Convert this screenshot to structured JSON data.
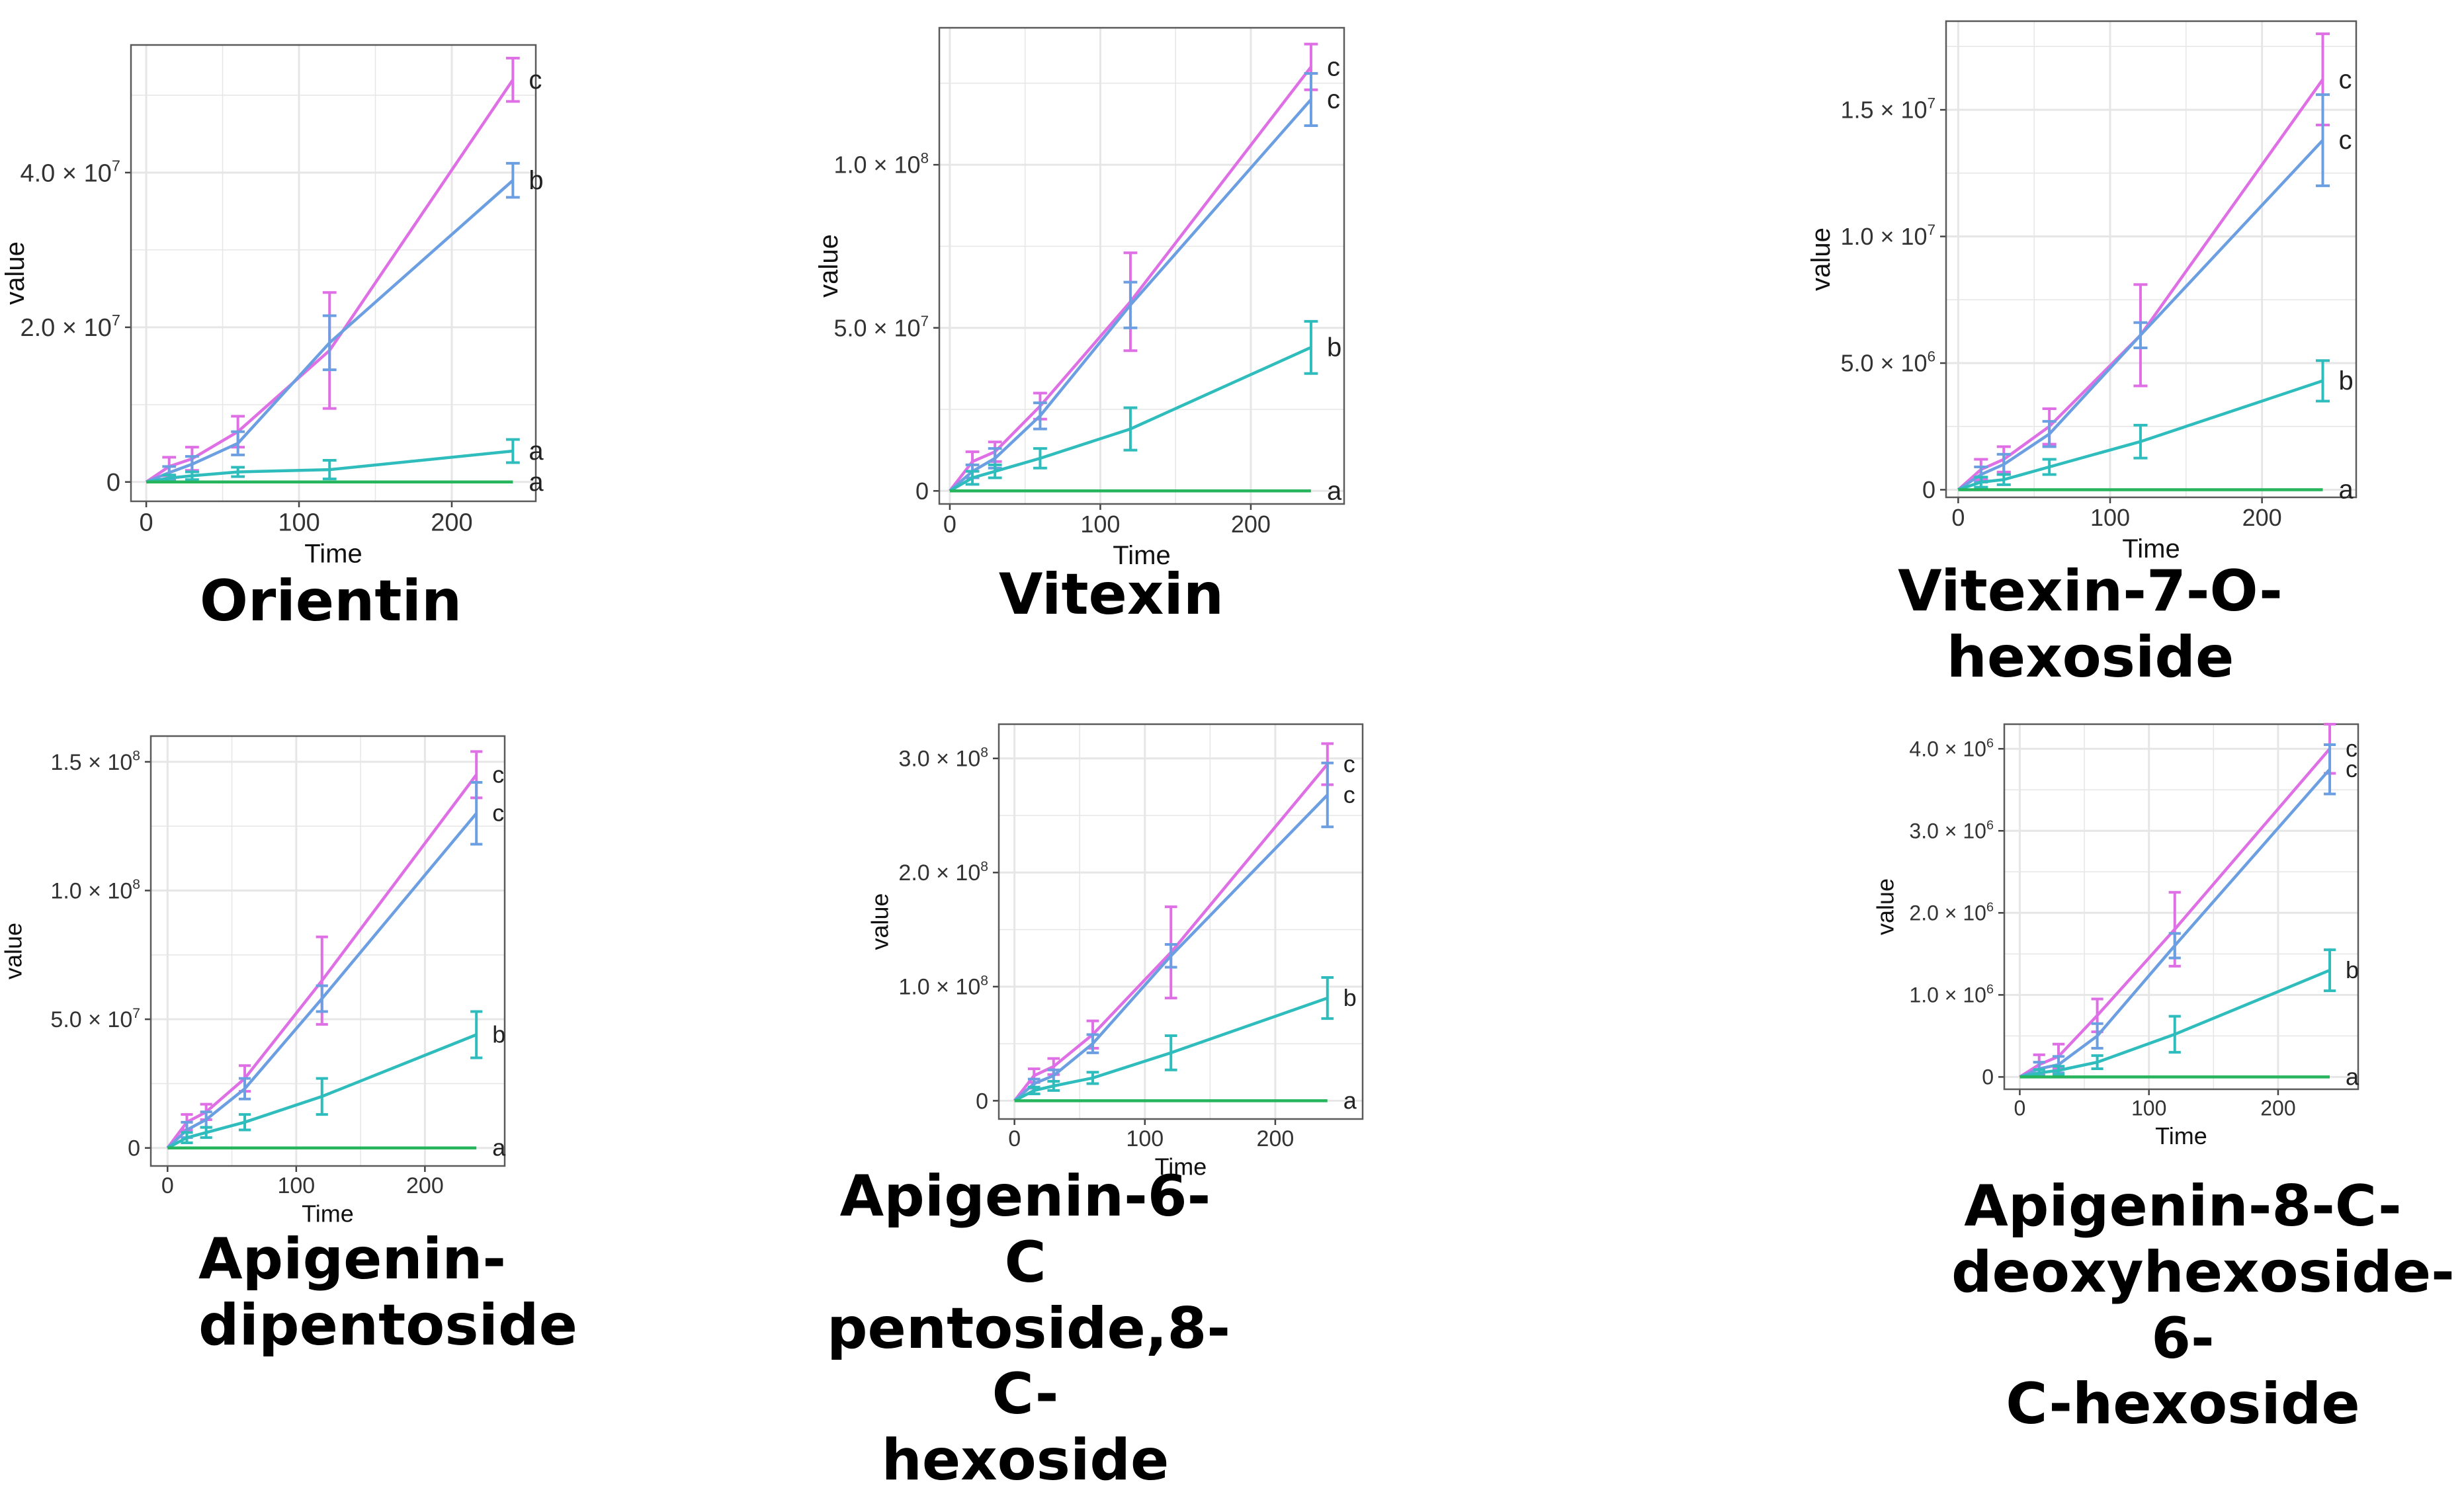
{
  "colors": {
    "magenta": "#df6fe4",
    "blue": "#6c9fe1",
    "teal": "#2fbcbc",
    "green": "#26b45c",
    "panel_bg": "#ffffff",
    "grid": "#e6e6e6",
    "axis_text": "#333333"
  },
  "chart_data": [
    {
      "type": "line",
      "title": "Orientin",
      "xlabel": "Time",
      "ylabel": "value",
      "x": [
        0,
        15,
        30,
        60,
        120,
        240
      ],
      "xlim": [
        -10,
        255
      ],
      "xticks": [
        "0",
        "100",
        "200"
      ],
      "xtickvals": [
        0,
        100,
        200
      ],
      "ylim": [
        -2.5,
        56.5
      ],
      "ytickvals": [
        0,
        20,
        40
      ],
      "yticks": [
        {
          "mant": "0",
          "exp": ""
        },
        {
          "mant": "2.0 × 10",
          "exp": "7"
        },
        {
          "mant": "4.0 × 10",
          "exp": "7"
        }
      ],
      "grid": true,
      "series": [
        {
          "name": "magenta",
          "color": "#df6fe4",
          "values": [
            0,
            2,
            3,
            6.5,
            17,
            52
          ],
          "err": [
            0,
            1.2,
            1.5,
            2,
            7.5,
            2.8
          ],
          "label": "c"
        },
        {
          "name": "blue",
          "color": "#6c9fe1",
          "values": [
            0,
            1.2,
            2.3,
            5,
            18,
            39
          ],
          "err": [
            0,
            0.8,
            1,
            1.5,
            3.5,
            2.2
          ],
          "label": "b"
        },
        {
          "name": "teal",
          "color": "#2fbcbc",
          "values": [
            0,
            0.5,
            0.8,
            1.3,
            1.6,
            4
          ],
          "err": [
            0,
            0.4,
            0.5,
            0.6,
            1.2,
            1.5
          ],
          "label": "a"
        },
        {
          "name": "green",
          "color": "#26b45c",
          "values": [
            0,
            0,
            0,
            0,
            0,
            0
          ],
          "err": [
            0,
            0,
            0,
            0,
            0,
            0
          ],
          "label": "a"
        }
      ]
    },
    {
      "type": "line",
      "title": "Vitexin",
      "xlabel": "Time",
      "ylabel": "value",
      "x": [
        0,
        15,
        30,
        60,
        120,
        240
      ],
      "xlim": [
        -7,
        262
      ],
      "xticks": [
        "0",
        "100",
        "200"
      ],
      "xtickvals": [
        0,
        100,
        200
      ],
      "ylim": [
        -4,
        142
      ],
      "ytickvals": [
        0,
        50,
        100
      ],
      "yticks": [
        {
          "mant": "0",
          "exp": ""
        },
        {
          "mant": "5.0 × 10",
          "exp": "7"
        },
        {
          "mant": "1.0 × 10",
          "exp": "8"
        }
      ],
      "grid": true,
      "series": [
        {
          "name": "magenta",
          "color": "#df6fe4",
          "values": [
            0,
            9,
            12,
            26,
            58,
            130
          ],
          "err": [
            0,
            3,
            3,
            4,
            15,
            7
          ],
          "label": "c"
        },
        {
          "name": "blue",
          "color": "#6c9fe1",
          "values": [
            0,
            6,
            10,
            23,
            57,
            120
          ],
          "err": [
            0,
            2,
            3,
            4,
            7,
            8
          ],
          "label": "c"
        },
        {
          "name": "teal",
          "color": "#2fbcbc",
          "values": [
            0,
            4,
            6,
            10,
            19,
            44
          ],
          "err": [
            0,
            2,
            2,
            3,
            6.5,
            8
          ],
          "label": "b"
        },
        {
          "name": "green",
          "color": "#26b45c",
          "values": [
            0,
            0,
            0,
            0,
            0,
            0
          ],
          "err": [
            0,
            0,
            0,
            0,
            0,
            0
          ],
          "label": "a"
        }
      ]
    },
    {
      "type": "line",
      "title": "Vitexin-7-O-hexoside",
      "xlabel": "Time",
      "ylabel": "value",
      "x": [
        0,
        15,
        30,
        60,
        120,
        240
      ],
      "xlim": [
        -8,
        262
      ],
      "xticks": [
        "0",
        "100",
        "200"
      ],
      "xtickvals": [
        0,
        100,
        200
      ],
      "ylim": [
        -0.3,
        18.5
      ],
      "ytickvals": [
        0,
        5,
        10,
        15
      ],
      "yticks": [
        {
          "mant": "0",
          "exp": ""
        },
        {
          "mant": "5.0 × 10",
          "exp": "6"
        },
        {
          "mant": "1.0 × 10",
          "exp": "7"
        },
        {
          "mant": "1.5 × 10",
          "exp": "7"
        }
      ],
      "grid": true,
      "series": [
        {
          "name": "magenta",
          "color": "#df6fe4",
          "values": [
            0,
            0.8,
            1.2,
            2.5,
            6.1,
            16.2
          ],
          "err": [
            0,
            0.4,
            0.5,
            0.7,
            2,
            1.8
          ],
          "label": "c"
        },
        {
          "name": "blue",
          "color": "#6c9fe1",
          "values": [
            0,
            0.6,
            1,
            2.2,
            6.1,
            13.8
          ],
          "err": [
            0,
            0.3,
            0.4,
            0.5,
            0.5,
            1.8
          ],
          "label": "c"
        },
        {
          "name": "teal",
          "color": "#2fbcbc",
          "values": [
            0,
            0.3,
            0.4,
            0.9,
            1.9,
            4.3
          ],
          "err": [
            0,
            0.2,
            0.2,
            0.3,
            0.65,
            0.8
          ],
          "label": "b"
        },
        {
          "name": "green",
          "color": "#26b45c",
          "values": [
            0,
            0,
            0,
            0,
            0,
            0
          ],
          "err": [
            0,
            0,
            0,
            0,
            0,
            0
          ],
          "label": "a"
        }
      ]
    },
    {
      "type": "line",
      "title": "Apigenin-dipentoside",
      "xlabel": "Time",
      "ylabel": "value",
      "x": [
        0,
        15,
        30,
        60,
        120,
        240
      ],
      "xlim": [
        -13,
        262
      ],
      "xticks": [
        "0",
        "100",
        "200"
      ],
      "xtickvals": [
        0,
        100,
        200
      ],
      "ylim": [
        -7,
        160
      ],
      "ytickvals": [
        0,
        50,
        100,
        150
      ],
      "yticks": [
        {
          "mant": "0",
          "exp": ""
        },
        {
          "mant": "5.0 × 10",
          "exp": "7"
        },
        {
          "mant": "1.0 × 10",
          "exp": "8"
        },
        {
          "mant": "1.5 × 10",
          "exp": "8"
        }
      ],
      "grid": true,
      "series": [
        {
          "name": "magenta",
          "color": "#df6fe4",
          "values": [
            0,
            10,
            14,
            27,
            65,
            145
          ],
          "err": [
            0,
            3,
            3,
            5,
            17,
            9
          ],
          "label": "c"
        },
        {
          "name": "blue",
          "color": "#6c9fe1",
          "values": [
            0,
            7,
            11,
            23,
            58,
            130
          ],
          "err": [
            0,
            3,
            3,
            4,
            5,
            12
          ],
          "label": "c"
        },
        {
          "name": "teal",
          "color": "#2fbcbc",
          "values": [
            0,
            4,
            6,
            10,
            20,
            44
          ],
          "err": [
            0,
            2,
            2,
            3,
            7,
            9
          ],
          "label": "b"
        },
        {
          "name": "green",
          "color": "#26b45c",
          "values": [
            0,
            0,
            0,
            0,
            0,
            0
          ],
          "err": [
            0,
            0,
            0,
            0,
            0,
            0
          ],
          "label": "a"
        }
      ]
    },
    {
      "type": "line",
      "title": "Apigenin-6-C pentoside,8-C-hexoside",
      "xlabel": "Time",
      "ylabel": "value",
      "x": [
        0,
        15,
        30,
        60,
        120,
        240
      ],
      "xlim": [
        -12,
        267
      ],
      "xticks": [
        "0",
        "100",
        "200"
      ],
      "xtickvals": [
        0,
        100,
        200
      ],
      "ylim": [
        -16,
        330
      ],
      "ytickvals": [
        0,
        100,
        200,
        300
      ],
      "yticks": [
        {
          "mant": "0",
          "exp": ""
        },
        {
          "mant": "1.0 × 10",
          "exp": "8"
        },
        {
          "mant": "2.0 × 10",
          "exp": "8"
        },
        {
          "mant": "3.0 × 10",
          "exp": "8"
        }
      ],
      "grid": true,
      "series": [
        {
          "name": "magenta",
          "color": "#df6fe4",
          "values": [
            0,
            22,
            30,
            58,
            130,
            295
          ],
          "err": [
            0,
            6,
            7,
            12,
            40,
            18
          ],
          "label": "c"
        },
        {
          "name": "blue",
          "color": "#6c9fe1",
          "values": [
            0,
            15,
            22,
            50,
            127,
            268
          ],
          "err": [
            0,
            4,
            5,
            8,
            10,
            28
          ],
          "label": "c"
        },
        {
          "name": "teal",
          "color": "#2fbcbc",
          "values": [
            0,
            9,
            13,
            20,
            42,
            90
          ],
          "err": [
            0,
            3,
            4,
            5,
            15,
            18
          ],
          "label": "b"
        },
        {
          "name": "green",
          "color": "#26b45c",
          "values": [
            0,
            0,
            0,
            0,
            0,
            0
          ],
          "err": [
            0,
            0,
            0,
            0,
            0,
            0
          ],
          "label": "a"
        }
      ]
    },
    {
      "type": "line",
      "title": "Apigenin-8-C-deoxyhexoside-6-C-hexoside",
      "xlabel": "Time",
      "ylabel": "value",
      "x": [
        0,
        15,
        30,
        60,
        120,
        240
      ],
      "xlim": [
        -12,
        262
      ],
      "xticks": [
        "0",
        "100",
        "200"
      ],
      "xtickvals": [
        0,
        100,
        200
      ],
      "ylim": [
        -0.15,
        4.3
      ],
      "ytickvals": [
        0,
        1,
        2,
        3,
        4
      ],
      "yticks": [
        {
          "mant": "0",
          "exp": ""
        },
        {
          "mant": "1.0 × 10",
          "exp": "6"
        },
        {
          "mant": "2.0 × 10",
          "exp": "6"
        },
        {
          "mant": "3.0 × 10",
          "exp": "6"
        },
        {
          "mant": "4.0 × 10",
          "exp": "6"
        }
      ],
      "grid": true,
      "series": [
        {
          "name": "magenta",
          "color": "#df6fe4",
          "values": [
            0,
            0.15,
            0.25,
            0.75,
            1.8,
            4.0
          ],
          "err": [
            0,
            0.12,
            0.15,
            0.2,
            0.45,
            0.3
          ],
          "label": "c"
        },
        {
          "name": "blue",
          "color": "#6c9fe1",
          "values": [
            0,
            0.1,
            0.15,
            0.5,
            1.6,
            3.75
          ],
          "err": [
            0,
            0.08,
            0.1,
            0.15,
            0.15,
            0.3
          ],
          "label": "c"
        },
        {
          "name": "teal",
          "color": "#2fbcbc",
          "values": [
            0,
            0.05,
            0.08,
            0.18,
            0.52,
            1.3
          ],
          "err": [
            0,
            0.04,
            0.05,
            0.08,
            0.22,
            0.25
          ],
          "label": "b"
        },
        {
          "name": "green",
          "color": "#26b45c",
          "values": [
            0,
            0,
            0,
            0,
            0,
            0
          ],
          "err": [
            0,
            0,
            0,
            0,
            0,
            0
          ],
          "label": "a"
        }
      ]
    }
  ],
  "captions": [
    {
      "lines": [
        "Orientin"
      ]
    },
    {
      "lines": [
        "Vitexin"
      ]
    },
    {
      "lines": [
        "Vitexin-7-O-hexoside"
      ]
    },
    {
      "lines": [
        "Apigenin-",
        "dipentoside"
      ]
    },
    {
      "lines": [
        "Apigenin-6-C",
        "pentoside,8-C-",
        "hexoside"
      ]
    },
    {
      "lines": [
        "Apigenin-8-C-",
        "deoxyhexoside-6-",
        "C-hexoside"
      ]
    }
  ]
}
